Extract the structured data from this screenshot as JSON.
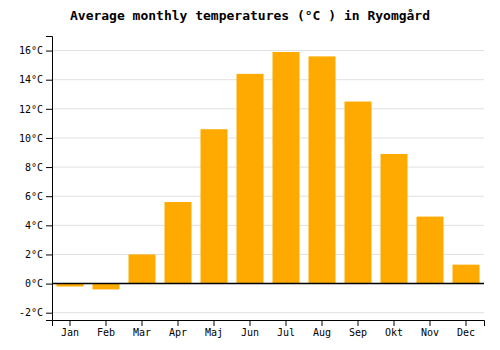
{
  "chart_data": {
    "type": "bar",
    "title": "Average monthly temperatures (°C ) in Ryomgård",
    "categories": [
      "Jan",
      "Feb",
      "Mar",
      "Apr",
      "Maj",
      "Jun",
      "Jul",
      "Aug",
      "Sep",
      "Okt",
      "Nov",
      "Dec"
    ],
    "values": [
      -0.2,
      -0.4,
      2.0,
      5.6,
      10.6,
      14.4,
      15.9,
      15.6,
      12.5,
      8.9,
      4.6,
      1.3
    ],
    "color": "#FFAA00",
    "ylim": [
      -2.5,
      17
    ],
    "yticks": [
      {
        "value": -2,
        "label": "-2°C"
      },
      {
        "value": 0,
        "label": "0°C"
      },
      {
        "value": 2,
        "label": "2°C"
      },
      {
        "value": 4,
        "label": "4°C"
      },
      {
        "value": 6,
        "label": "6°C"
      },
      {
        "value": 8,
        "label": "8°C"
      },
      {
        "value": 10,
        "label": "10°C"
      },
      {
        "value": 12,
        "label": "12°C"
      },
      {
        "value": 14,
        "label": "14°C"
      },
      {
        "value": 16,
        "label": "16°C"
      }
    ],
    "grid": true
  }
}
